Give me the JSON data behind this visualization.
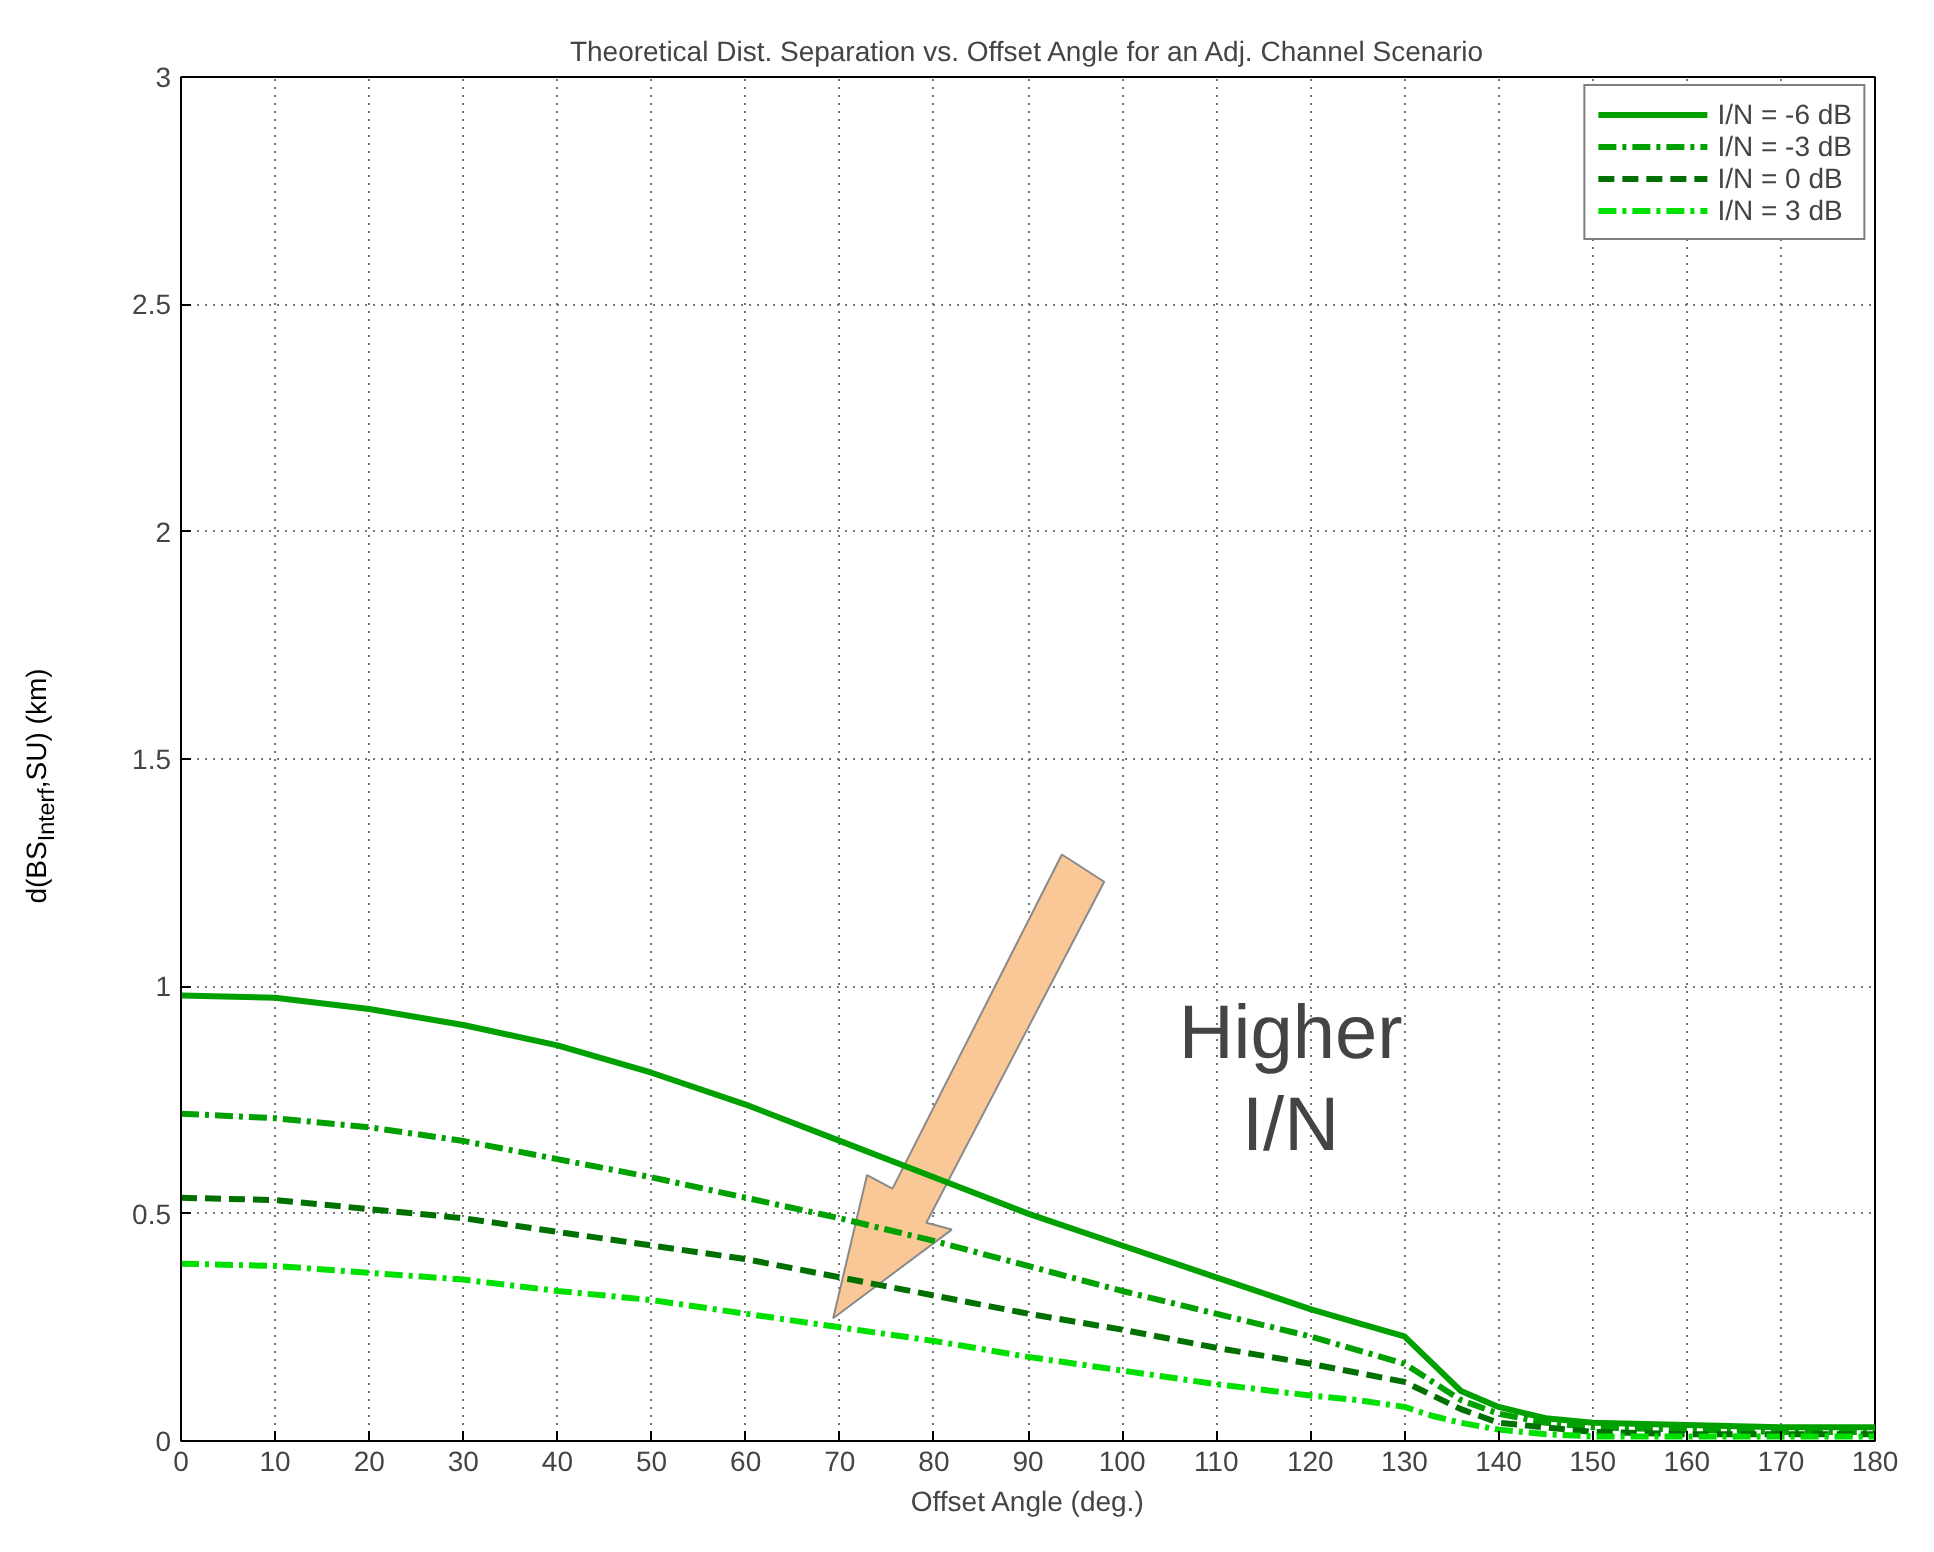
{
  "chart_data": {
    "type": "line",
    "title": "Theoretical Dist. Separation vs. Offset Angle for an Adj. Channel Scenario",
    "xlabel": "Offset Angle (deg.)",
    "ylabel": "d(BS$_{Interf}$,SU) (km)",
    "x": [
      0,
      10,
      20,
      30,
      40,
      50,
      60,
      70,
      80,
      90,
      100,
      110,
      120,
      125,
      130,
      133,
      136,
      140,
      145,
      150,
      160,
      170,
      180
    ],
    "series": [
      {
        "name": "I/N = -6 dB",
        "color": "#00a000",
        "line_style": "solid",
        "values": [
          0.98,
          0.975,
          0.95,
          0.915,
          0.87,
          0.81,
          0.74,
          0.66,
          0.58,
          0.5,
          0.43,
          0.36,
          0.29,
          0.26,
          0.23,
          0.17,
          0.11,
          0.075,
          0.05,
          0.04,
          0.035,
          0.03,
          0.03
        ]
      },
      {
        "name": "I/N = -3 dB",
        "color": "#00a000",
        "line_style": "dashdot",
        "values": [
          0.72,
          0.71,
          0.69,
          0.66,
          0.62,
          0.58,
          0.535,
          0.49,
          0.44,
          0.385,
          0.33,
          0.28,
          0.23,
          0.2,
          0.17,
          0.13,
          0.09,
          0.06,
          0.04,
          0.03,
          0.025,
          0.02,
          0.02
        ]
      },
      {
        "name": "I/N = 0 dB",
        "color": "#007000",
        "line_style": "dashed",
        "values": [
          0.535,
          0.53,
          0.51,
          0.49,
          0.46,
          0.43,
          0.4,
          0.36,
          0.32,
          0.28,
          0.245,
          0.205,
          0.17,
          0.15,
          0.13,
          0.1,
          0.07,
          0.04,
          0.03,
          0.02,
          0.015,
          0.015,
          0.015
        ]
      },
      {
        "name": "I/N = 3 dB",
        "color": "#00e000",
        "line_style": "dashdot",
        "values": [
          0.39,
          0.385,
          0.37,
          0.355,
          0.33,
          0.31,
          0.28,
          0.25,
          0.22,
          0.185,
          0.155,
          0.125,
          0.1,
          0.09,
          0.075,
          0.055,
          0.04,
          0.025,
          0.015,
          0.01,
          0.01,
          0.01,
          0.01
        ]
      }
    ],
    "xlim": [
      0,
      180
    ],
    "xticks": [
      0,
      10,
      20,
      30,
      40,
      50,
      60,
      70,
      80,
      90,
      100,
      110,
      120,
      130,
      140,
      150,
      160,
      170,
      180
    ],
    "ylim": [
      0,
      3
    ],
    "yticks": [
      0,
      0.5,
      1,
      1.5,
      2,
      2.5,
      3
    ],
    "grid": true,
    "legend": "top right",
    "annotations": [
      "Higher\nI/N"
    ]
  }
}
